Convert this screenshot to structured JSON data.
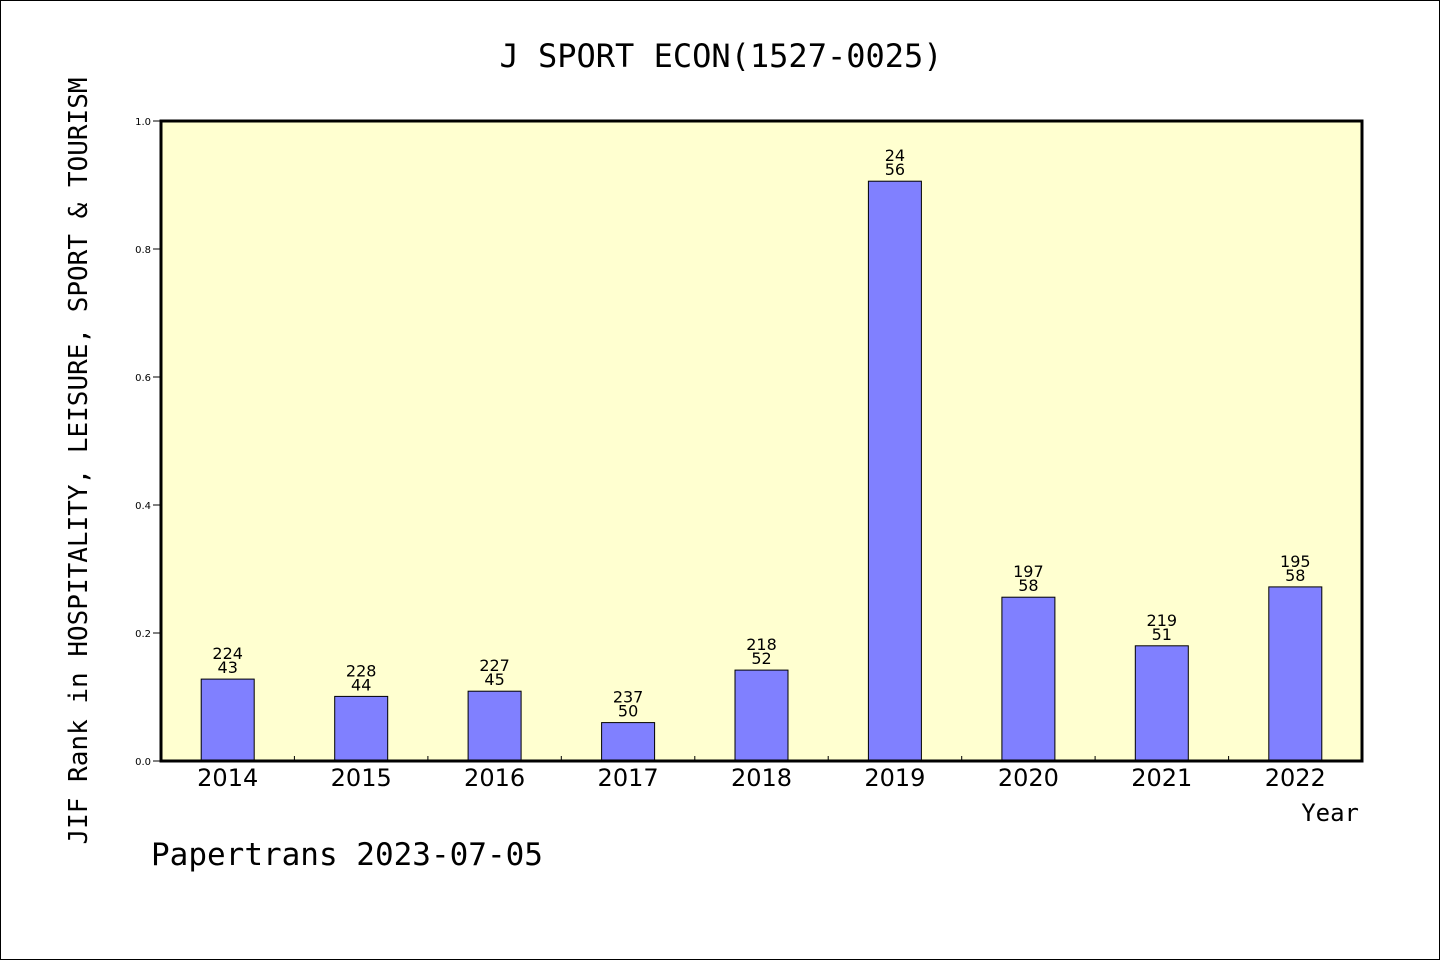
{
  "chart_data": {
    "type": "bar",
    "title": "J SPORT ECON(1527-0025)",
    "ylabel": "JIF Rank in HOSPITALITY, LEISURE, SPORT & TOURISM",
    "xlabel": "Year",
    "footer": "Papertrans 2023-07-05",
    "ylim": [
      0,
      1.0
    ],
    "yticks": [
      "0.0",
      "0.2",
      "0.4",
      "0.6",
      "0.8",
      "1.0"
    ],
    "categories": [
      "2014",
      "2015",
      "2016",
      "2017",
      "2018",
      "2019",
      "2020",
      "2021",
      "2022"
    ],
    "values": [
      0.128,
      0.101,
      0.109,
      0.06,
      0.142,
      0.906,
      0.256,
      0.18,
      0.272
    ],
    "rank_totals": [
      "224",
      "228",
      "227",
      "237",
      "218",
      "24",
      "197",
      "219",
      "195"
    ],
    "rank_values": [
      "43",
      "44",
      "45",
      "50",
      "52",
      "56",
      "58",
      "51",
      "58"
    ],
    "grid": false,
    "colors": {
      "plot_background": "#ffffd0",
      "bar_fill": "#8080ff",
      "bar_stroke": "#000000"
    }
  }
}
